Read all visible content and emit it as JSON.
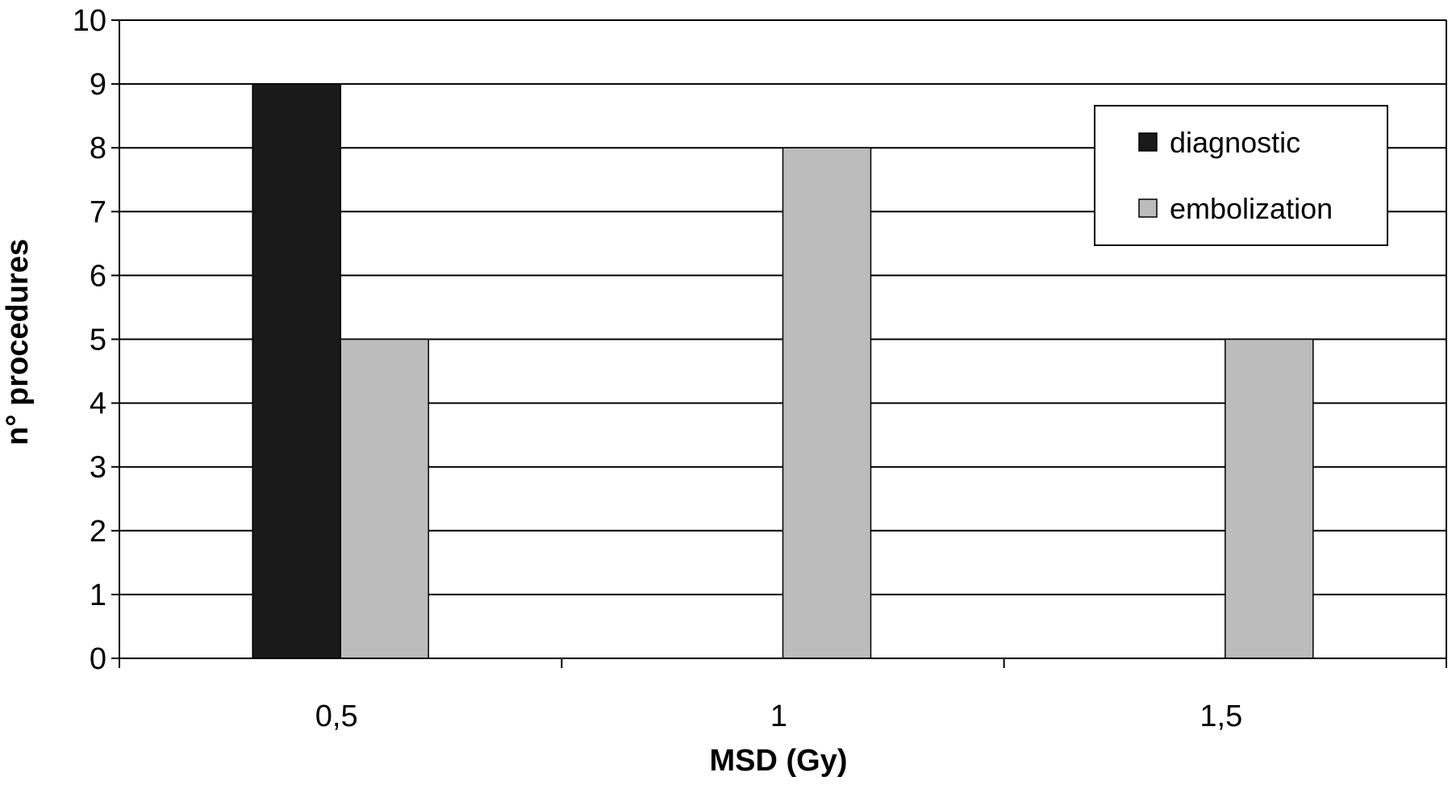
{
  "chart_data": {
    "type": "bar",
    "title": "",
    "xlabel": "MSD (Gy)",
    "ylabel": "n° procedures",
    "categories": [
      "0,5",
      "1",
      "1,5"
    ],
    "series": [
      {
        "name": "diagnostic",
        "values": [
          9,
          0,
          0
        ],
        "color": "#1a1a1a"
      },
      {
        "name": "embolization",
        "values": [
          5,
          8,
          5
        ],
        "color": "#bcbcbc"
      }
    ],
    "ylim": [
      0,
      10
    ],
    "yticks": [
      "0",
      "1",
      "2",
      "3",
      "4",
      "5",
      "6",
      "7",
      "8",
      "9",
      "10"
    ],
    "grid": true,
    "legend_position": "top-right"
  }
}
